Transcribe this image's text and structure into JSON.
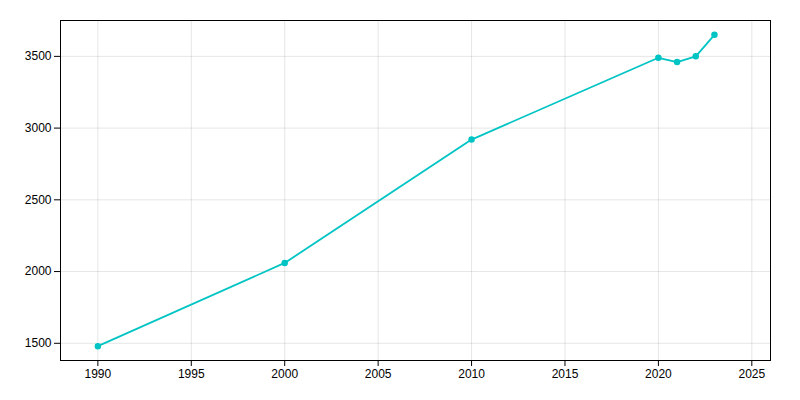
{
  "chart_data": {
    "type": "line",
    "x": [
      1990,
      2000,
      2010,
      2020,
      2021,
      2022,
      2023
    ],
    "values": [
      1480,
      2060,
      2920,
      3490,
      3460,
      3500,
      3650
    ],
    "color": "#00C4C4",
    "marker": "circle",
    "xlim": [
      1988,
      2026
    ],
    "ylim": [
      1380,
      3750
    ],
    "xticks": [
      1990,
      1995,
      2000,
      2005,
      2010,
      2015,
      2020,
      2025
    ],
    "yticks": [
      1500,
      2000,
      2500,
      3000,
      3500
    ],
    "grid": true
  }
}
